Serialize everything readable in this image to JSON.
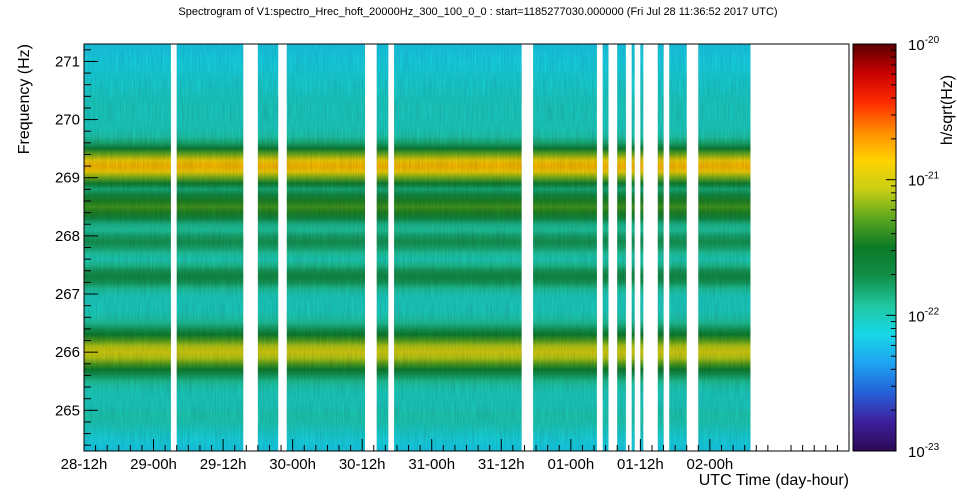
{
  "chart_data": {
    "type": "heatmap",
    "title": "Spectrogram of V1:spectro_Hrec_hoft_20000Hz_300_100_0_0 : start=1185277030.000000 (Fri Jul 28 11:36:52 2017 UTC)",
    "xlabel": "UTC Time (day-hour)",
    "ylabel": "Frequency (Hz)",
    "colorbar_label": "h/sqrt(Hz)",
    "x_ticks": [
      "28-12h",
      "29-00h",
      "29-12h",
      "30-00h",
      "30-12h",
      "31-00h",
      "31-12h",
      "01-00h",
      "01-12h",
      "02-00h"
    ],
    "xlim_hours": [
      0,
      132
    ],
    "y_ticks": [
      265,
      266,
      267,
      268,
      269,
      270,
      271
    ],
    "ylim": [
      264.3,
      271.3
    ],
    "color_scale": "log",
    "color_range": [
      1e-23,
      1e-20
    ],
    "colorbar_ticks": [
      {
        "base": "10",
        "exp": "-20",
        "value": 1e-20
      },
      {
        "base": "10",
        "exp": "-21",
        "value": 1e-21
      },
      {
        "base": "10",
        "exp": "-22",
        "value": 1e-22
      },
      {
        "base": "10",
        "exp": "-23",
        "value": 1e-23
      }
    ],
    "data_segments_hours": [
      [
        0,
        15
      ],
      [
        16,
        27.5
      ],
      [
        30,
        33.5
      ],
      [
        35,
        48.5
      ],
      [
        50.5,
        52.5
      ],
      [
        53.5,
        75.5
      ],
      [
        77.5,
        88.5
      ],
      [
        89.5,
        90.5
      ],
      [
        92,
        93.5
      ],
      [
        94.5,
        95
      ],
      [
        96,
        96.5
      ],
      [
        99,
        100
      ],
      [
        101,
        104
      ],
      [
        106,
        115
      ]
    ],
    "spectral_bands": [
      {
        "center_hz": 269.2,
        "width_hz": 0.3,
        "level": 0.74
      },
      {
        "center_hz": 268.5,
        "width_hz": 0.25,
        "level": 0.55
      },
      {
        "center_hz": 267.9,
        "width_hz": 0.2,
        "level": 0.42
      },
      {
        "center_hz": 267.3,
        "width_hz": 0.2,
        "level": 0.44
      },
      {
        "center_hz": 266.0,
        "width_hz": 0.35,
        "level": 0.66
      },
      {
        "center_hz": 264.8,
        "width_hz": 0.25,
        "level": 0.34
      }
    ],
    "background_level": 0.32,
    "colorbar_stops": [
      "#2b0a55",
      "#3f1f9b",
      "#2460d8",
      "#1ea2f0",
      "#17d6e8",
      "#1fc8a0",
      "#128f4a",
      "#0b7a26",
      "#5aa61f",
      "#c8cf13",
      "#ffd200",
      "#ff8a00",
      "#ff2a00",
      "#c80000",
      "#5a0000"
    ]
  }
}
